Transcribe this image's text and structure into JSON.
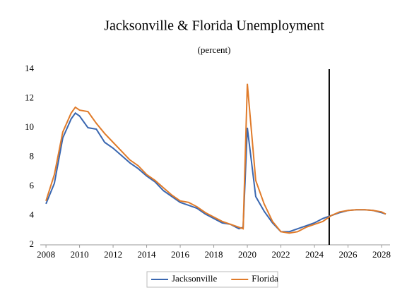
{
  "chart_data": {
    "type": "line",
    "title": "Jacksonville & Florida Unemployment",
    "subtitle": "(percent)",
    "x": [
      2008,
      2008.5,
      2009,
      2009.5,
      2009.75,
      2010,
      2010.5,
      2011,
      2011.5,
      2012,
      2012.5,
      2013,
      2013.5,
      2014,
      2014.5,
      2015,
      2015.5,
      2016,
      2016.5,
      2017,
      2017.5,
      2018,
      2018.5,
      2019,
      2019.5,
      2019.75,
      2020,
      2020.5,
      2021,
      2021.5,
      2022,
      2022.5,
      2023,
      2023.5,
      2024,
      2024.5,
      2025,
      2025.5,
      2026,
      2026.5,
      2027,
      2027.5,
      2028,
      2028.25
    ],
    "series": [
      {
        "name": "Jacksonville",
        "color": "#3a67b0",
        "values": [
          4.8,
          6.2,
          9.3,
          10.6,
          11.0,
          10.8,
          10.0,
          9.9,
          9.0,
          8.6,
          8.1,
          7.6,
          7.2,
          6.7,
          6.3,
          5.7,
          5.3,
          4.9,
          4.7,
          4.5,
          4.1,
          3.8,
          3.5,
          3.4,
          3.1,
          3.2,
          10.0,
          5.3,
          4.3,
          3.5,
          2.9,
          2.9,
          3.1,
          3.3,
          3.5,
          3.8,
          4.0,
          4.2,
          4.35,
          4.4,
          4.4,
          4.35,
          4.2,
          4.1
        ]
      },
      {
        "name": "Florida",
        "color": "#e07b2a",
        "values": [
          5.0,
          6.8,
          9.7,
          11.0,
          11.4,
          11.2,
          11.1,
          10.3,
          9.6,
          9.0,
          8.4,
          7.8,
          7.4,
          6.8,
          6.4,
          5.9,
          5.4,
          5.0,
          4.9,
          4.6,
          4.2,
          3.9,
          3.6,
          3.4,
          3.2,
          3.1,
          13.0,
          6.4,
          4.8,
          3.6,
          2.9,
          2.8,
          2.9,
          3.2,
          3.4,
          3.6,
          4.0,
          4.25,
          4.35,
          4.4,
          4.4,
          4.35,
          4.25,
          4.1
        ]
      }
    ],
    "xlim": [
      2007.66,
      2028.42
    ],
    "xticks": [
      2008,
      2010,
      2012,
      2014,
      2016,
      2018,
      2020,
      2022,
      2024,
      2026,
      2028
    ],
    "ylim": [
      2,
      14
    ],
    "yticks": [
      2,
      4,
      6,
      8,
      10,
      12,
      14
    ],
    "vline_x": 2024.88,
    "grid": false,
    "legend": "bottom"
  }
}
